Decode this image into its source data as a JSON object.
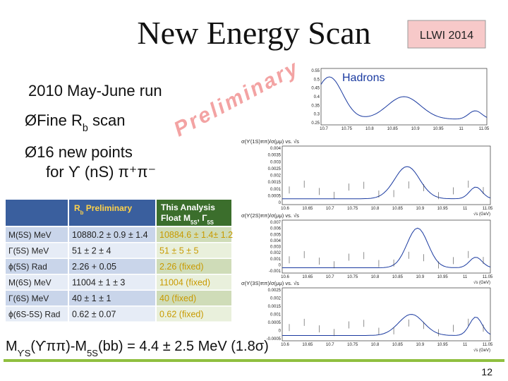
{
  "header": {
    "title": "New Energy Scan",
    "badge": "LLWI 2014"
  },
  "body": {
    "run": "2010 May-June run",
    "bullet1": [
      {
        "t": "ØFine R"
      },
      {
        "t": "b",
        "sub": true
      },
      {
        "t": " scan"
      }
    ],
    "watermark": "Preliminary",
    "bullet2": "Ø16 new points",
    "bullet2b": "for ϒ (nS) π⁺π⁻"
  },
  "table": {
    "header": [
      [
        {
          "t": "R"
        },
        {
          "t": "b",
          "sub": true
        },
        {
          "t": "   Preliminary"
        }
      ],
      [
        {
          "t": "This Analysis"
        }
      ],
      [
        {
          "t": "Float M"
        },
        {
          "t": "5S",
          "sub": true
        },
        {
          "t": ", Γ"
        },
        {
          "t": "5S",
          "sub": true
        }
      ]
    ],
    "rows": [
      [
        "M(5S) MeV",
        "10880.2 ± 0.9 ± 1.4",
        "10884.6 ± 1.4± 1.2"
      ],
      [
        "Γ(5S) MeV",
        "51 ± 2 ± 4",
        "51 ± 5 ± 5"
      ],
      [
        "ϕ(5S) Rad",
        "2.26 + 0.05",
        "2.26 (fixed)"
      ],
      [
        "M(6S) MeV",
        "11004 ± 1 ± 3",
        "11004 (fixed)"
      ],
      [
        "Γ(6S) MeV",
        "40 ± 1 ± 1",
        "40 (fixed)"
      ],
      [
        "ϕ(6S-5S) Rad",
        "0.62 ± 0.07",
        "0.62 (fixed)"
      ]
    ]
  },
  "formula": [
    {
      "t": "M"
    },
    {
      "t": "ϒS",
      "sub": true
    },
    {
      "t": "(ϒππ)-M"
    },
    {
      "t": "5S",
      "sub": true
    },
    {
      "t": "(bb) = 4.4 ± 2.5 MeV (1.8σ)"
    }
  ],
  "plots": {
    "hadrons": {
      "label": "Hadrons",
      "yticks": [
        "0.55",
        "0.5",
        "0.45",
        "0.4",
        "0.35",
        "0.3",
        "0.25"
      ],
      "xticks": [
        "10.7",
        "10.75",
        "10.8",
        "10.85",
        "10.9",
        "10.95",
        "11",
        "11.05"
      ]
    },
    "xticks": [
      "10.6",
      "10.65",
      "10.7",
      "10.75",
      "10.8",
      "10.85",
      "10.9",
      "10.95",
      "11",
      "11.05"
    ],
    "xlabel": "√s (GeV)",
    "panels": [
      {
        "title": "σ(ϒ(1S)ππ)/σ(μμ) vs. √s",
        "yticks": [
          "0.004",
          "0.0035",
          "0.003",
          "0.0025",
          "0.002",
          "0.0015",
          "0.001",
          "0.0005",
          "0"
        ]
      },
      {
        "title": "σ(ϒ(2S)ππ)/σ(μμ) vs. √s",
        "yticks": [
          "0.007",
          "0.006",
          "0.005",
          "0.004",
          "0.003",
          "0.002",
          "0.001",
          "0",
          "-0.001"
        ]
      },
      {
        "title": "σ(ϒ(3S)ππ)/σ(μμ) vs. √s",
        "yticks": [
          "0.0025",
          "0.002",
          "0.0015",
          "0.001",
          "0.0005",
          "0",
          "-0.0005"
        ]
      }
    ]
  },
  "footer": {
    "page": "12"
  }
}
